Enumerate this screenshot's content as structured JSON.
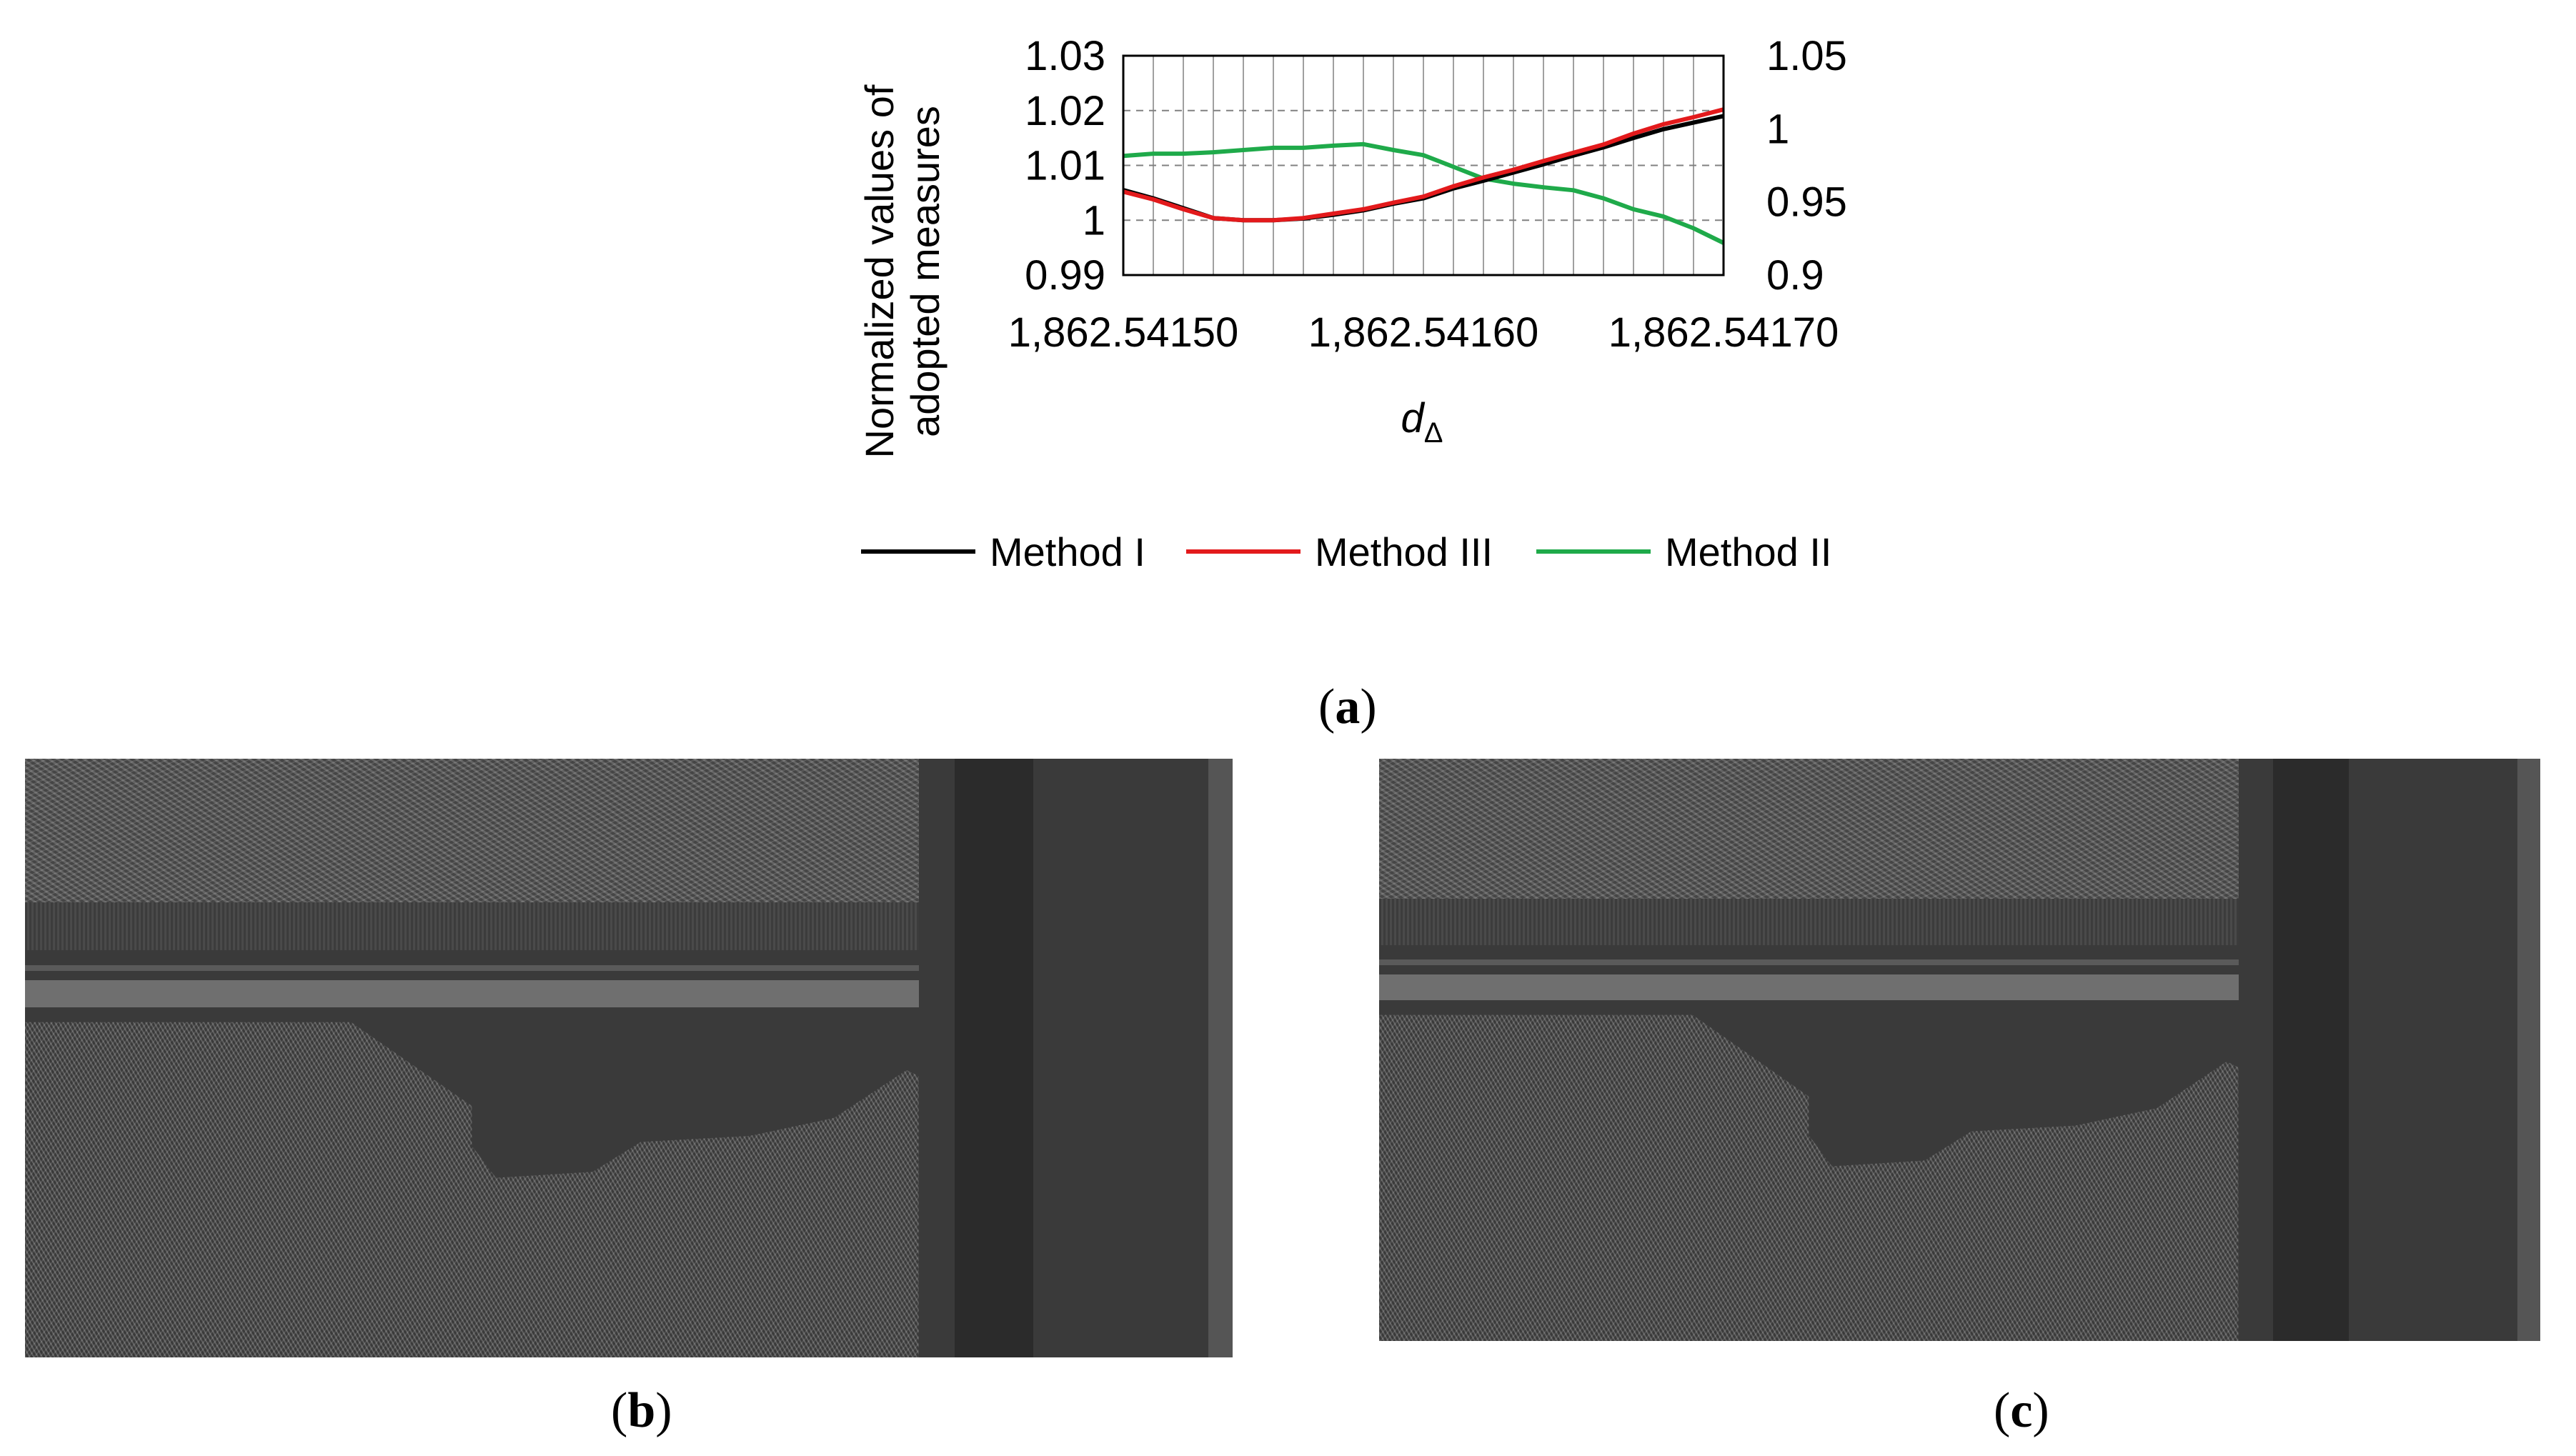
{
  "chart_data": {
    "type": "line",
    "xlabel": "d",
    "xlabel_subscript": "Δ",
    "ylabel_lines": [
      "Normalized values of",
      "adopted measures"
    ],
    "x": [
      1862.5415,
      1862.54151,
      1862.54152,
      1862.54153,
      1862.54154,
      1862.54155,
      1862.54156,
      1862.54157,
      1862.54158,
      1862.54159,
      1862.5416,
      1862.54161,
      1862.54162,
      1862.54163,
      1862.54164,
      1862.54165,
      1862.54166,
      1862.54167,
      1862.54168,
      1862.54169,
      1862.5417
    ],
    "x_ticks": [
      1862.5415,
      1862.5416,
      1862.5417
    ],
    "x_tick_labels": [
      "1,862.54150",
      "1,862.54160",
      "1,862.54170"
    ],
    "xlim": [
      1862.5415,
      1862.5417
    ],
    "ylim_left": [
      0.99,
      1.03
    ],
    "y_ticks_left": [
      "0.99",
      "1",
      "1.01",
      "1.02",
      "1.03"
    ],
    "ylim_right": [
      0.9,
      1.05
    ],
    "y_ticks_right": [
      "0.9",
      "0.95",
      "1",
      "1.05"
    ],
    "grid": "x-solid, y-dashed",
    "legend_position": "bottom",
    "series": [
      {
        "name": "Method I",
        "axis": "left",
        "color": "#000000",
        "values": [
          1.0055,
          1.004,
          1.0022,
          1.0004,
          1.0,
          1.0,
          1.0003,
          1.001,
          1.0018,
          1.003,
          1.004,
          1.0058,
          1.0072,
          1.0087,
          1.0102,
          1.0118,
          1.0133,
          1.015,
          1.0166,
          1.0178,
          1.019
        ]
      },
      {
        "name": "Method III",
        "axis": "left",
        "color": "#e31a1c",
        "values": [
          1.0052,
          1.0038,
          1.002,
          1.0004,
          1.0,
          1.0,
          1.0004,
          1.0012,
          1.002,
          1.0032,
          1.0043,
          1.0062,
          1.0078,
          1.0092,
          1.0108,
          1.0123,
          1.0138,
          1.0158,
          1.0175,
          1.0188,
          1.0202
        ]
      },
      {
        "name": "Method II",
        "axis": "right",
        "color": "#1faa4a",
        "values": [
          0.9815,
          0.983,
          0.983,
          0.984,
          0.9855,
          0.987,
          0.987,
          0.9885,
          0.9895,
          0.9855,
          0.982,
          0.974,
          0.966,
          0.9625,
          0.96,
          0.958,
          0.9525,
          0.945,
          0.94,
          0.932,
          0.922
        ]
      }
    ]
  },
  "panels": {
    "a": {
      "label_letter": "a"
    },
    "b": {
      "label_letter": "b"
    },
    "c": {
      "label_letter": "c"
    }
  }
}
